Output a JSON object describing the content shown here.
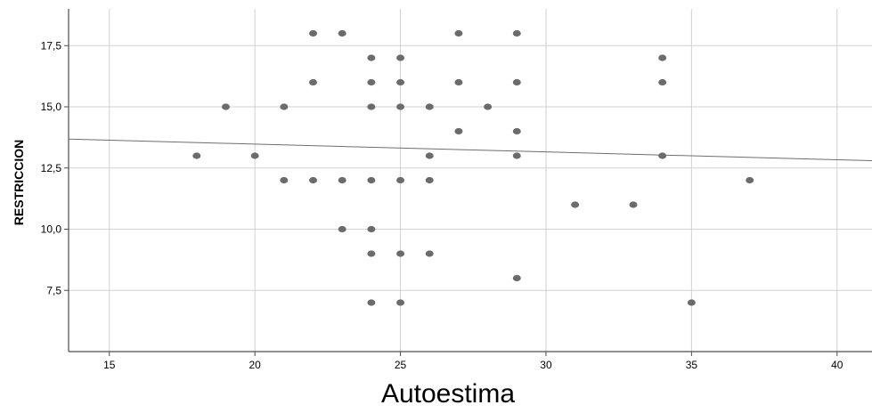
{
  "chart_data": {
    "type": "scatter",
    "title": "",
    "xlabel": "Autoestima",
    "ylabel": "RESTRICCION",
    "xlim": [
      13.6,
      41.2
    ],
    "ylim": [
      5.0,
      19.0
    ],
    "x_ticks": [
      15,
      20,
      25,
      30,
      35,
      40
    ],
    "x_tick_labels": [
      "15",
      "20",
      "25",
      "30",
      "35",
      "40"
    ],
    "y_ticks": [
      7.5,
      10.0,
      12.5,
      15.0,
      17.5
    ],
    "y_tick_labels": [
      "7,5",
      "10,0",
      "12,5",
      "15,0",
      "17,5"
    ],
    "grid": true,
    "points": [
      [
        18,
        13
      ],
      [
        19,
        15
      ],
      [
        20,
        13
      ],
      [
        21,
        15
      ],
      [
        21,
        12
      ],
      [
        22,
        18
      ],
      [
        22,
        16
      ],
      [
        22,
        12
      ],
      [
        23,
        18
      ],
      [
        23,
        12
      ],
      [
        23,
        10
      ],
      [
        24,
        17
      ],
      [
        24,
        16
      ],
      [
        24,
        15
      ],
      [
        24,
        12
      ],
      [
        24,
        10
      ],
      [
        24,
        9
      ],
      [
        24,
        7
      ],
      [
        25,
        17
      ],
      [
        25,
        16
      ],
      [
        25,
        15
      ],
      [
        25,
        12
      ],
      [
        25,
        9
      ],
      [
        25,
        7
      ],
      [
        26,
        15
      ],
      [
        26,
        13
      ],
      [
        26,
        12
      ],
      [
        26,
        9
      ],
      [
        27,
        18
      ],
      [
        27,
        16
      ],
      [
        27,
        14
      ],
      [
        28,
        15
      ],
      [
        29,
        18
      ],
      [
        29,
        16
      ],
      [
        29,
        14
      ],
      [
        29,
        13
      ],
      [
        29,
        8
      ],
      [
        31,
        11
      ],
      [
        33,
        11
      ],
      [
        34,
        17
      ],
      [
        34,
        16
      ],
      [
        34,
        13
      ],
      [
        35,
        7
      ],
      [
        37,
        12
      ]
    ],
    "fit_line": {
      "x": [
        13.6,
        41.2
      ],
      "y": [
        13.68,
        12.8
      ]
    },
    "colors": {
      "point": "#6b6b6b",
      "grid": "#d0d0d0",
      "axis": "#4d4d4d",
      "fit_line": "#6e6e6e"
    }
  }
}
